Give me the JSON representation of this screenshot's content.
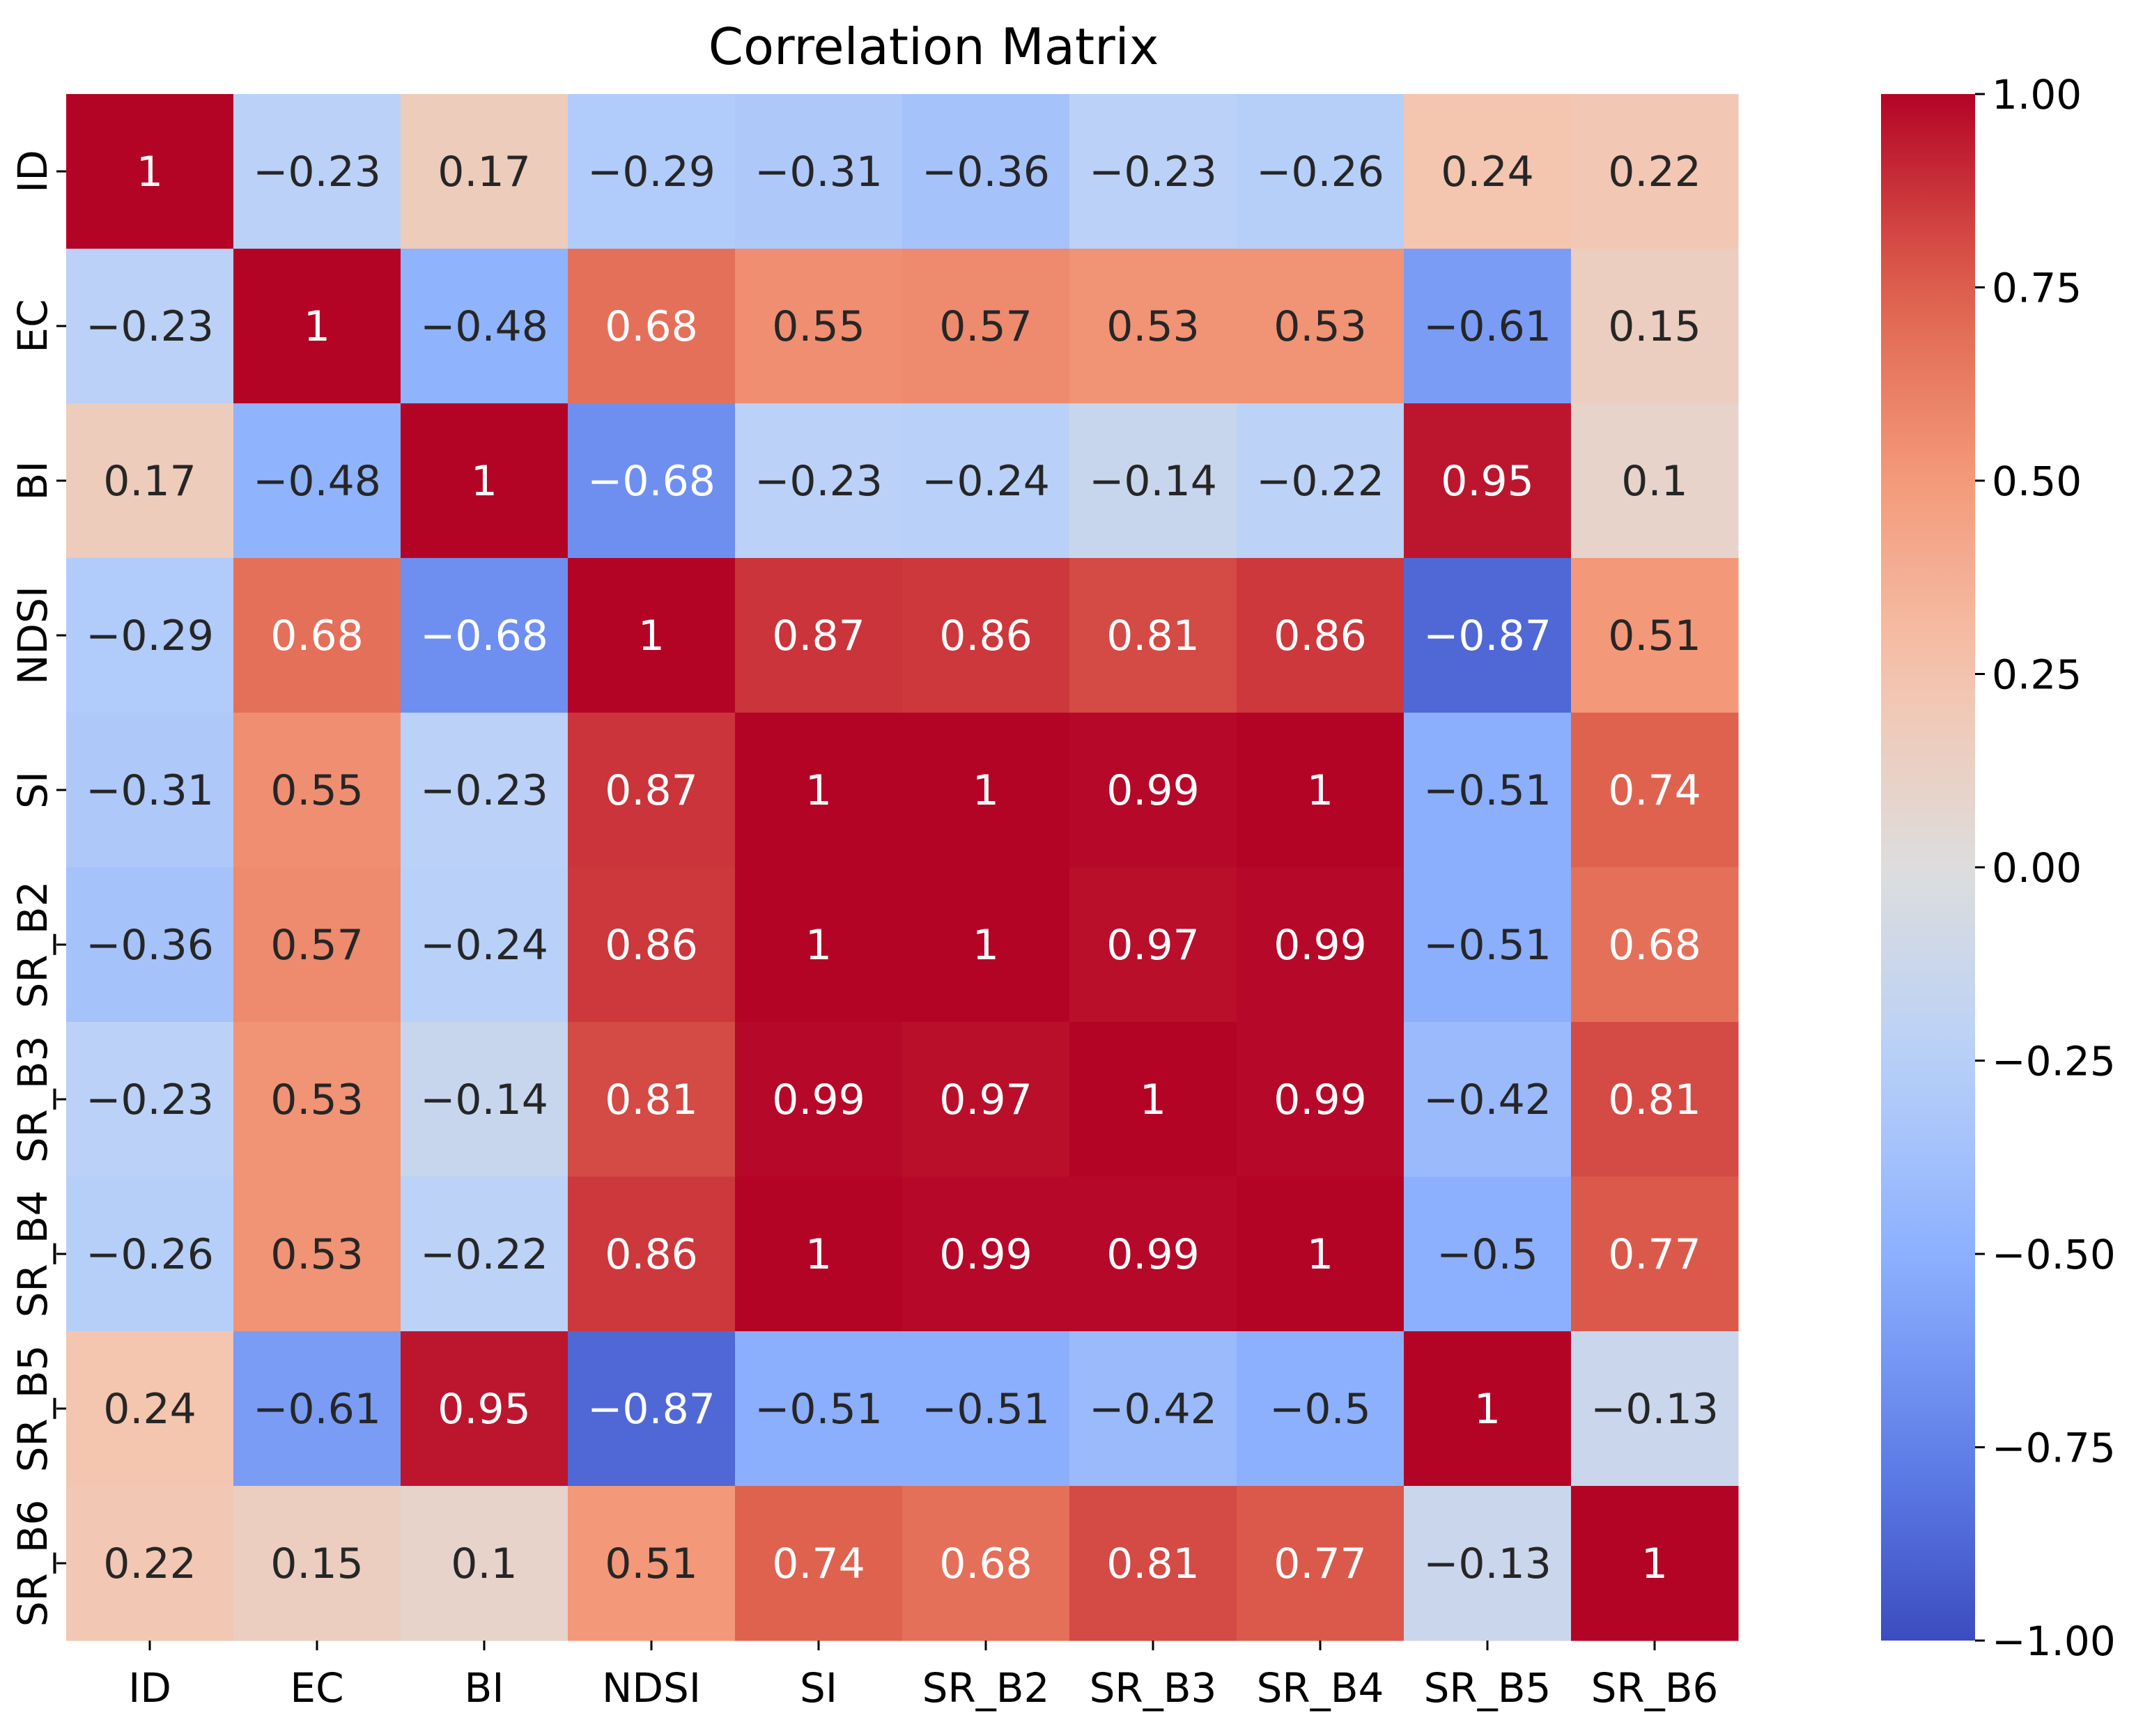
{
  "chart_data": {
    "type": "heatmap",
    "title": "Correlation Matrix",
    "rows": [
      "ID",
      "EC",
      "BI",
      "NDSI",
      "SI",
      "SR_B2",
      "SR_B3",
      "SR_B4",
      "SR_B5",
      "SR_B6"
    ],
    "cols": [
      "ID",
      "EC",
      "BI",
      "NDSI",
      "SI",
      "SR_B2",
      "SR_B3",
      "SR_B4",
      "SR_B5",
      "SR_B6"
    ],
    "values": [
      [
        1,
        -0.23,
        0.17,
        -0.29,
        -0.31,
        -0.36,
        -0.23,
        -0.26,
        0.24,
        0.22
      ],
      [
        -0.23,
        1,
        -0.48,
        0.68,
        0.55,
        0.57,
        0.53,
        0.53,
        -0.61,
        0.15
      ],
      [
        0.17,
        -0.48,
        1,
        -0.68,
        -0.23,
        -0.24,
        -0.14,
        -0.22,
        0.95,
        0.1
      ],
      [
        -0.29,
        0.68,
        -0.68,
        1,
        0.87,
        0.86,
        0.81,
        0.86,
        -0.87,
        0.51
      ],
      [
        -0.31,
        0.55,
        -0.23,
        0.87,
        1,
        1,
        0.99,
        1,
        -0.51,
        0.74
      ],
      [
        -0.36,
        0.57,
        -0.24,
        0.86,
        1,
        1,
        0.97,
        0.99,
        -0.51,
        0.68
      ],
      [
        -0.23,
        0.53,
        -0.14,
        0.81,
        0.99,
        0.97,
        1,
        0.99,
        -0.42,
        0.81
      ],
      [
        -0.26,
        0.53,
        -0.22,
        0.86,
        1,
        0.99,
        0.99,
        1,
        -0.5,
        0.77
      ],
      [
        0.24,
        -0.61,
        0.95,
        -0.87,
        -0.51,
        -0.51,
        -0.42,
        -0.5,
        1,
        -0.13
      ],
      [
        0.22,
        0.15,
        0.1,
        0.51,
        0.74,
        0.68,
        0.81,
        0.77,
        -0.13,
        1
      ]
    ],
    "labels": [
      [
        "1",
        "−0.23",
        "0.17",
        "−0.29",
        "−0.31",
        "−0.36",
        "−0.23",
        "−0.26",
        "0.24",
        "0.22"
      ],
      [
        "−0.23",
        "1",
        "−0.48",
        "0.68",
        "0.55",
        "0.57",
        "0.53",
        "0.53",
        "−0.61",
        "0.15"
      ],
      [
        "0.17",
        "−0.48",
        "1",
        "−0.68",
        "−0.23",
        "−0.24",
        "−0.14",
        "−0.22",
        "0.95",
        "0.1"
      ],
      [
        "−0.29",
        "0.68",
        "−0.68",
        "1",
        "0.87",
        "0.86",
        "0.81",
        "0.86",
        "−0.87",
        "0.51"
      ],
      [
        "−0.31",
        "0.55",
        "−0.23",
        "0.87",
        "1",
        "1",
        "0.99",
        "1",
        "−0.51",
        "0.74"
      ],
      [
        "−0.36",
        "0.57",
        "−0.24",
        "0.86",
        "1",
        "1",
        "0.97",
        "0.99",
        "−0.51",
        "0.68"
      ],
      [
        "−0.23",
        "0.53",
        "−0.14",
        "0.81",
        "0.99",
        "0.97",
        "1",
        "0.99",
        "−0.42",
        "0.81"
      ],
      [
        "−0.26",
        "0.53",
        "−0.22",
        "0.86",
        "1",
        "0.99",
        "0.99",
        "1",
        "−0.5",
        "0.77"
      ],
      [
        "0.24",
        "−0.61",
        "0.95",
        "−0.87",
        "−0.51",
        "−0.51",
        "−0.42",
        "−0.5",
        "1",
        "−0.13"
      ],
      [
        "0.22",
        "0.15",
        "0.1",
        "0.51",
        "0.74",
        "0.68",
        "0.81",
        "0.77",
        "−0.13",
        "1"
      ]
    ],
    "colormap": "coolwarm",
    "vmin": -1,
    "vmax": 1,
    "colorbar_ticks": [
      1,
      0.75,
      0.5,
      0.25,
      0,
      -0.25,
      -0.5,
      -0.75,
      -1
    ],
    "colorbar_tick_labels": [
      "1.00",
      "0.75",
      "0.50",
      "0.25",
      "0.00",
      "−0.25",
      "−0.50",
      "−0.75",
      "−1.00"
    ],
    "grid": false,
    "legend": "colorbar-right"
  }
}
